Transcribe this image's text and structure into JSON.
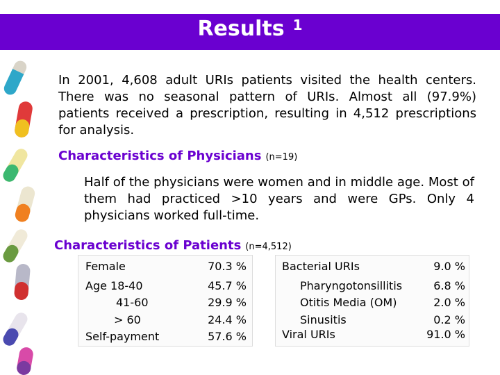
{
  "title": "Results",
  "title_sup": "1",
  "intro": "In 2001, 4,608 adult URIs patients visited the health centers. There was no seasonal pattern of URIs. Almost all (97.9%) patients received a prescription, resulting in 4,512 prescriptions for analysis.",
  "physicians_heading": "Characteristics of Physicians",
  "physicians_n": "(n=19)",
  "physicians_text": "Half of the physicians were women and in middle age. Most of them had practiced >10 years and were GPs. Only 4 physicians worked full-time.",
  "patients_heading": "Characteristics of Patients",
  "patients_n": "(n=4,512)",
  "left_table": {
    "female_label": "Female",
    "female_value": "70.3 %",
    "age_label": "Age 18-40",
    "age_value": "45.7 %",
    "age2_label": "41-60",
    "age2_value": "29.9 %",
    "age3_label": "> 60",
    "age3_value": "24.4 %",
    "self_label": "Self-payment",
    "self_value": "57.6 %"
  },
  "right_table": {
    "bact_label": "Bacterial URIs",
    "bact_value": "9.0 %",
    "pharyn_label": "Pharyngotonsillitis",
    "pharyn_value": "6.8 %",
    "otitis_label": "Otitis Media (OM)",
    "otitis_value": "2.0 %",
    "sinus_label": "Sinusitis",
    "sinus_value": "0.2 %",
    "viral_label": "Viral URIs",
    "viral_value": "91.0 %"
  },
  "colors": {
    "accent": "#6a00d0"
  }
}
